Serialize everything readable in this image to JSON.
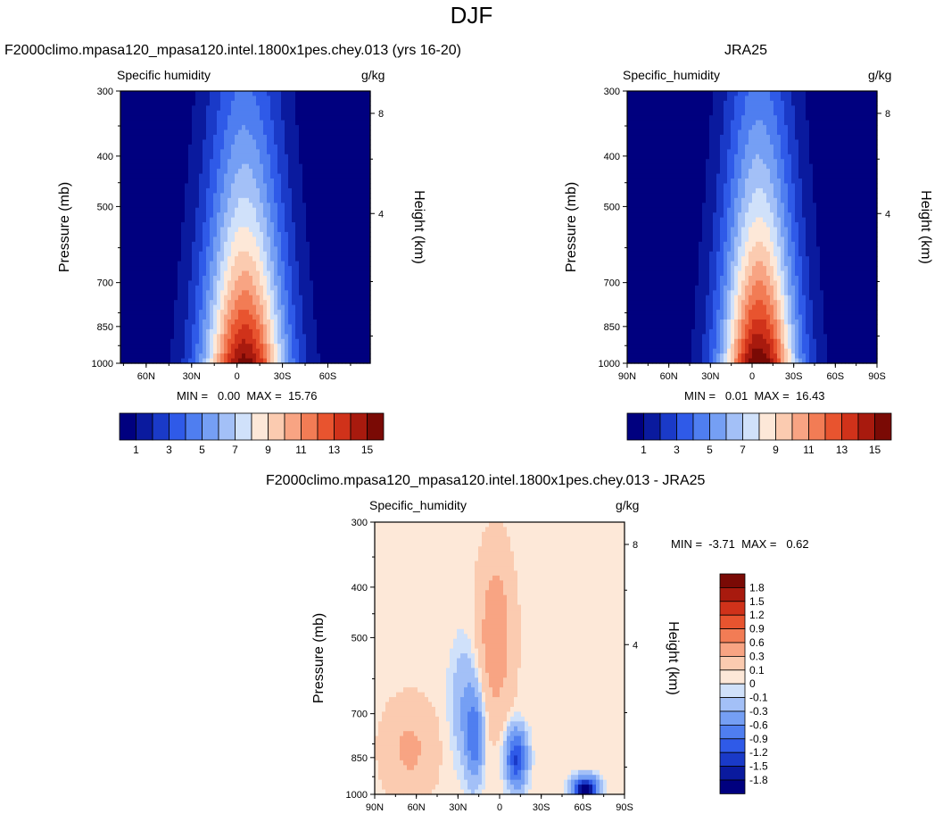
{
  "page": {
    "title": "DJF"
  },
  "colors": {
    "levels_abs": [
      "#00007f",
      "#0a1a9e",
      "#1a3ac8",
      "#2f5ae8",
      "#4f7ef0",
      "#759ff4",
      "#a3c0f7",
      "#d0e1fa",
      "#fde8d8",
      "#fbcbb0",
      "#f8a483",
      "#f27c55",
      "#e8542f",
      "#d0321a",
      "#a81a0e",
      "#7a0a05"
    ],
    "levels_diff": [
      "#00007f",
      "#0a1a9e",
      "#1a3ac8",
      "#2f5ae8",
      "#4f7ef0",
      "#759ff4",
      "#a3c0f7",
      "#d0e1fa",
      "#fde8d8",
      "#fbcbb0",
      "#f8a483",
      "#f27c55",
      "#e8542f",
      "#d0321a",
      "#a81a0e",
      "#7a0a05"
    ]
  },
  "chart_data": [
    {
      "type": "heatmap",
      "title": "F2000climo.mpasa120_mpasa120.intel.1800x1pes.chey.013 (yrs 16-20)",
      "left_string": "Specific humidity",
      "right_string": "g/kg",
      "ylabel": "Pressure (mb)",
      "y2label": "Height (km)",
      "y_ticks": [
        "300",
        "400",
        "500",
        "700",
        "850",
        "1000"
      ],
      "y_ticks_values": [
        300,
        400,
        500,
        700,
        850,
        1000
      ],
      "y2_ticks": [
        "8",
        "4"
      ],
      "x_ticks": [
        "60N",
        "30N",
        "0",
        "30S",
        "60S"
      ],
      "x_ticks_values": [
        60,
        30,
        0,
        -30,
        -60
      ],
      "xlim": [
        77,
        -88
      ],
      "ylim": [
        300,
        1000
      ],
      "y_scale": "log",
      "min_max": "MIN =   0.00  MAX =  15.76",
      "peak_value": 15.76,
      "colorbar_labels": [
        "1",
        "3",
        "5",
        "7",
        "9",
        "11",
        "13",
        "15"
      ]
    },
    {
      "type": "heatmap",
      "title": "JRA25",
      "left_string": "Specific_humidity",
      "right_string": "g/kg",
      "ylabel": "Pressure (mb)",
      "y2label": "Height (km)",
      "y_ticks": [
        "300",
        "400",
        "500",
        "700",
        "850",
        "1000"
      ],
      "y_ticks_values": [
        300,
        400,
        500,
        700,
        850,
        1000
      ],
      "y2_ticks": [
        "8",
        "4"
      ],
      "x_ticks": [
        "90N",
        "60N",
        "30N",
        "0",
        "30S",
        "60S",
        "90S"
      ],
      "x_ticks_values": [
        90,
        60,
        30,
        0,
        -30,
        -60,
        -90
      ],
      "xlim": [
        90,
        -90
      ],
      "ylim": [
        300,
        1000
      ],
      "y_scale": "log",
      "min_max": "MIN =   0.01  MAX =  16.43",
      "peak_value": 16.43,
      "colorbar_labels": [
        "1",
        "3",
        "5",
        "7",
        "9",
        "11",
        "13",
        "15"
      ]
    },
    {
      "type": "heatmap",
      "title": "F2000climo.mpasa120_mpasa120.intel.1800x1pes.chey.013 - JRA25",
      "left_string": "Specific_humidity",
      "right_string": "g/kg",
      "ylabel": "Pressure (mb)",
      "y2label": "Height (km)",
      "y_ticks": [
        "300",
        "400",
        "500",
        "700",
        "850",
        "1000"
      ],
      "y_ticks_values": [
        300,
        400,
        500,
        700,
        850,
        1000
      ],
      "y2_ticks": [
        "8",
        "4"
      ],
      "x_ticks": [
        "90N",
        "60N",
        "30N",
        "0",
        "30S",
        "60S",
        "90S"
      ],
      "x_ticks_values": [
        90,
        60,
        30,
        0,
        -30,
        -60,
        -90
      ],
      "xlim": [
        90,
        -90
      ],
      "ylim": [
        300,
        1000
      ],
      "y_scale": "log",
      "min_max": "MIN =  -3.71  MAX =   0.62",
      "min_value": -3.71,
      "max_value": 0.62,
      "colorbar_labels": [
        "1.8",
        "1.5",
        "1.2",
        "0.9",
        "0.6",
        "0.3",
        "0.1",
        "0",
        "-0.1",
        "-0.3",
        "-0.6",
        "-0.9",
        "-1.2",
        "-1.5",
        "-1.8"
      ]
    }
  ]
}
